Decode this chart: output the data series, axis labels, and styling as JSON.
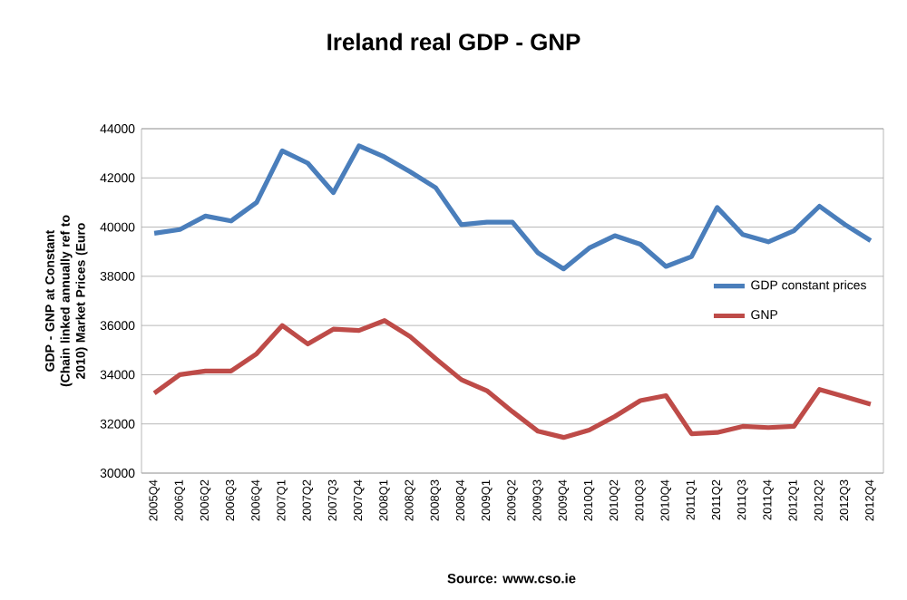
{
  "chart_data": {
    "type": "line",
    "title": "Ireland real GDP - GNP",
    "ylabel": "GDP - GNP at Constant (Chain linked annually ref to 2010) Market Prices (Euro",
    "categories": [
      "2005Q4",
      "2006Q1",
      "2006Q2",
      "2006Q3",
      "2006Q4",
      "2007Q1",
      "2007Q2",
      "2007Q3",
      "2007Q4",
      "2008Q1",
      "2008Q2",
      "2008Q3",
      "2008Q4",
      "2009Q1",
      "2009Q2",
      "2009Q3",
      "2009Q4",
      "2010Q1",
      "2010Q2",
      "2010Q3",
      "2010Q4",
      "2011Q1",
      "2011Q2",
      "2011Q3",
      "2011Q4",
      "2012Q1",
      "2012Q2",
      "2012Q3",
      "2012Q4"
    ],
    "series": [
      {
        "name": "GDP constant prices",
        "color": "#4a7ebb",
        "values": [
          39750,
          39900,
          40450,
          40250,
          41000,
          43100,
          42600,
          41400,
          43300,
          42850,
          42250,
          41600,
          40100,
          40200,
          40200,
          38950,
          38300,
          39150,
          39650,
          39300,
          38400,
          38800,
          40800,
          39700,
          39400,
          39850,
          40850,
          40100,
          39450
        ]
      },
      {
        "name": "GNP",
        "color": "#be4b48",
        "values": [
          33250,
          34000,
          34150,
          34150,
          34850,
          36000,
          35250,
          35850,
          35800,
          36200,
          35550,
          34650,
          33800,
          33350,
          32500,
          31700,
          31450,
          31750,
          32300,
          32950,
          33150,
          31600,
          31650,
          31900,
          31850,
          31900,
          33400,
          33100,
          32800
        ]
      }
    ],
    "ylim": [
      30000,
      44000
    ],
    "yticks": [
      30000,
      32000,
      34000,
      36000,
      38000,
      40000,
      42000,
      44000
    ],
    "grid": "y",
    "legend": "right",
    "marker": "none",
    "line_style": "solid",
    "annotations": [
      "Source: www.cso.ie"
    ]
  }
}
